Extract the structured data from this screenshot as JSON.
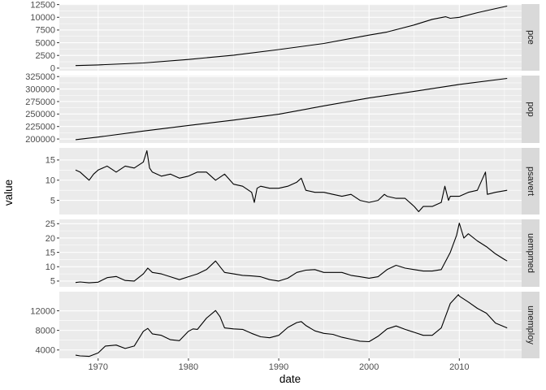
{
  "chart_data": {
    "type": "line",
    "layout": "faceted, stacked vertically, free y scales",
    "xlabel": "date",
    "ylabel": "value",
    "x_ticks": [
      "1970",
      "1980",
      "1990",
      "2000",
      "2010"
    ],
    "xlim": [
      1965.7,
      2016.9
    ],
    "grid": true,
    "legend": "none",
    "colors": {
      "panel_bg": "#ebebeb",
      "grid": "#ffffff",
      "strip_bg": "#d9d9d9",
      "line": "#000000"
    },
    "panels": [
      {
        "strip": "pce",
        "ylim": [
          -500,
          12600
        ],
        "y_ticks": [
          0,
          2500,
          5000,
          7500,
          10000,
          12500
        ],
        "y_tick_labels": [
          "0",
          "2500",
          "5000",
          "7500",
          "10000",
          "12500"
        ],
        "series": [
          [
            1967.5,
            507
          ],
          [
            1970,
            640
          ],
          [
            1975,
            1020
          ],
          [
            1980,
            1700
          ],
          [
            1985,
            2550
          ],
          [
            1990,
            3650
          ],
          [
            1995,
            4850
          ],
          [
            2000,
            6500
          ],
          [
            2002,
            7100
          ],
          [
            2005,
            8500
          ],
          [
            2007,
            9600
          ],
          [
            2008.5,
            10100
          ],
          [
            2009,
            9800
          ],
          [
            2010,
            10000
          ],
          [
            2012,
            10900
          ],
          [
            2014,
            11700
          ],
          [
            2015.3,
            12200
          ]
        ]
      },
      {
        "strip": "pop",
        "ylim": [
          192000,
          327000
        ],
        "y_ticks": [
          200000,
          225000,
          250000,
          275000,
          300000,
          325000
        ],
        "y_tick_labels": [
          "200000",
          "225000",
          "250000",
          "275000",
          "300000",
          "325000"
        ],
        "series": [
          [
            1967.5,
            198700
          ],
          [
            1970,
            203900
          ],
          [
            1975,
            215900
          ],
          [
            1980,
            227200
          ],
          [
            1985,
            237900
          ],
          [
            1990,
            249600
          ],
          [
            1995,
            266300
          ],
          [
            2000,
            282100
          ],
          [
            2005,
            295500
          ],
          [
            2010,
            309300
          ],
          [
            2015.3,
            321300
          ]
        ]
      },
      {
        "strip": "psavert",
        "ylim": [
          1.5,
          18
        ],
        "y_ticks": [
          5,
          10,
          15
        ],
        "y_tick_labels": [
          "5",
          "10",
          "15"
        ],
        "series": [
          [
            1967.5,
            12.5
          ],
          [
            1968,
            12.0
          ],
          [
            1968.5,
            11.0
          ],
          [
            1969,
            10.0
          ],
          [
            1969.5,
            11.5
          ],
          [
            1970,
            12.5
          ],
          [
            1971,
            13.5
          ],
          [
            1972,
            12.0
          ],
          [
            1973,
            13.5
          ],
          [
            1974,
            13.0
          ],
          [
            1975,
            14.5
          ],
          [
            1975.4,
            17.3
          ],
          [
            1975.7,
            13.0
          ],
          [
            1976,
            12.0
          ],
          [
            1977,
            11.0
          ],
          [
            1978,
            11.5
          ],
          [
            1979,
            10.5
          ],
          [
            1980,
            11.0
          ],
          [
            1981,
            12.0
          ],
          [
            1982,
            12.0
          ],
          [
            1983,
            10.0
          ],
          [
            1984,
            11.5
          ],
          [
            1985,
            9.0
          ],
          [
            1986,
            8.5
          ],
          [
            1987,
            7.0
          ],
          [
            1987.3,
            4.5
          ],
          [
            1987.6,
            8.0
          ],
          [
            1988,
            8.5
          ],
          [
            1989,
            8.0
          ],
          [
            1990,
            8.0
          ],
          [
            1991,
            8.5
          ],
          [
            1992,
            9.5
          ],
          [
            1992.5,
            10.5
          ],
          [
            1993,
            7.5
          ],
          [
            1994,
            7.0
          ],
          [
            1995,
            7.0
          ],
          [
            1996,
            6.5
          ],
          [
            1997,
            6.0
          ],
          [
            1998,
            6.5
          ],
          [
            1999,
            5.0
          ],
          [
            2000,
            4.5
          ],
          [
            2001,
            5.0
          ],
          [
            2001.7,
            6.5
          ],
          [
            2002,
            6.0
          ],
          [
            2003,
            5.5
          ],
          [
            2004,
            5.5
          ],
          [
            2005,
            3.5
          ],
          [
            2005.5,
            2.2
          ],
          [
            2006,
            3.5
          ],
          [
            2007,
            3.5
          ],
          [
            2008,
            4.5
          ],
          [
            2008.4,
            8.5
          ],
          [
            2008.8,
            5.0
          ],
          [
            2009,
            6.0
          ],
          [
            2010,
            6.0
          ],
          [
            2011,
            7.0
          ],
          [
            2012,
            7.5
          ],
          [
            2012.9,
            12.0
          ],
          [
            2013.1,
            6.5
          ],
          [
            2014,
            7.0
          ],
          [
            2015.3,
            7.5
          ]
        ]
      },
      {
        "strip": "uempmed",
        "ylim": [
          3.0,
          26.5
        ],
        "y_ticks": [
          5,
          10,
          15,
          20,
          25
        ],
        "y_tick_labels": [
          "5",
          "10",
          "15",
          "20",
          "25"
        ],
        "series": [
          [
            1967.5,
            4.5
          ],
          [
            1968,
            4.7
          ],
          [
            1969,
            4.4
          ],
          [
            1970,
            4.6
          ],
          [
            1971,
            6.2
          ],
          [
            1972,
            6.6
          ],
          [
            1973,
            5.2
          ],
          [
            1974,
            5.0
          ],
          [
            1975,
            7.5
          ],
          [
            1975.5,
            9.5
          ],
          [
            1976,
            8.0
          ],
          [
            1977,
            7.5
          ],
          [
            1978,
            6.5
          ],
          [
            1979,
            5.5
          ],
          [
            1980,
            6.5
          ],
          [
            1981,
            7.5
          ],
          [
            1982,
            9.0
          ],
          [
            1983,
            12.0
          ],
          [
            1983.5,
            10.0
          ],
          [
            1984,
            8.0
          ],
          [
            1985,
            7.5
          ],
          [
            1986,
            7.0
          ],
          [
            1987,
            6.8
          ],
          [
            1988,
            6.5
          ],
          [
            1989,
            5.5
          ],
          [
            1990,
            5.0
          ],
          [
            1991,
            6.0
          ],
          [
            1992,
            8.0
          ],
          [
            1993,
            8.8
          ],
          [
            1994,
            9.0
          ],
          [
            1995,
            8.0
          ],
          [
            1996,
            8.0
          ],
          [
            1997,
            8.0
          ],
          [
            1998,
            7.0
          ],
          [
            1999,
            6.5
          ],
          [
            2000,
            6.0
          ],
          [
            2001,
            6.5
          ],
          [
            2002,
            9.0
          ],
          [
            2003,
            10.5
          ],
          [
            2004,
            9.5
          ],
          [
            2005,
            9.0
          ],
          [
            2006,
            8.5
          ],
          [
            2007,
            8.5
          ],
          [
            2008,
            9.0
          ],
          [
            2009,
            15.0
          ],
          [
            2009.7,
            21.0
          ],
          [
            2010,
            25.2
          ],
          [
            2010.5,
            20.0
          ],
          [
            2011,
            21.5
          ],
          [
            2012,
            19.0
          ],
          [
            2013,
            17.0
          ],
          [
            2014,
            14.5
          ],
          [
            2015,
            12.5
          ],
          [
            2015.3,
            12.0
          ]
        ]
      },
      {
        "strip": "unemploy",
        "ylim": [
          2300,
          15900
        ],
        "y_ticks": [
          4000,
          8000,
          12000
        ],
        "y_tick_labels": [
          "4000",
          "8000",
          "12000"
        ],
        "series": [
          [
            1967.5,
            2950
          ],
          [
            1968,
            2800
          ],
          [
            1969,
            2700
          ],
          [
            1970,
            3400
          ],
          [
            1970.8,
            4800
          ],
          [
            1972,
            5000
          ],
          [
            1973,
            4300
          ],
          [
            1974,
            4800
          ],
          [
            1975,
            7800
          ],
          [
            1975.5,
            8400
          ],
          [
            1976,
            7300
          ],
          [
            1977,
            7000
          ],
          [
            1978,
            6100
          ],
          [
            1979,
            5900
          ],
          [
            1980,
            7800
          ],
          [
            1980.5,
            8300
          ],
          [
            1981,
            8200
          ],
          [
            1982,
            10500
          ],
          [
            1983,
            12050
          ],
          [
            1983.5,
            10800
          ],
          [
            1984,
            8500
          ],
          [
            1985,
            8300
          ],
          [
            1986,
            8200
          ],
          [
            1987,
            7400
          ],
          [
            1988,
            6700
          ],
          [
            1989,
            6500
          ],
          [
            1990,
            7000
          ],
          [
            1991,
            8600
          ],
          [
            1992,
            9600
          ],
          [
            1992.5,
            9800
          ],
          [
            1993,
            9000
          ],
          [
            1994,
            7900
          ],
          [
            1995,
            7400
          ],
          [
            1996,
            7200
          ],
          [
            1997,
            6600
          ],
          [
            1998,
            6200
          ],
          [
            1999,
            5800
          ],
          [
            2000,
            5700
          ],
          [
            2001,
            6800
          ],
          [
            2002,
            8300
          ],
          [
            2003,
            8900
          ],
          [
            2004,
            8200
          ],
          [
            2005,
            7600
          ],
          [
            2006,
            7000
          ],
          [
            2007,
            7000
          ],
          [
            2008,
            8500
          ],
          [
            2009,
            13500
          ],
          [
            2009.9,
            15300
          ],
          [
            2010,
            15000
          ],
          [
            2011,
            13800
          ],
          [
            2012,
            12500
          ],
          [
            2013,
            11500
          ],
          [
            2014,
            9500
          ],
          [
            2015.3,
            8500
          ]
        ]
      }
    ]
  }
}
